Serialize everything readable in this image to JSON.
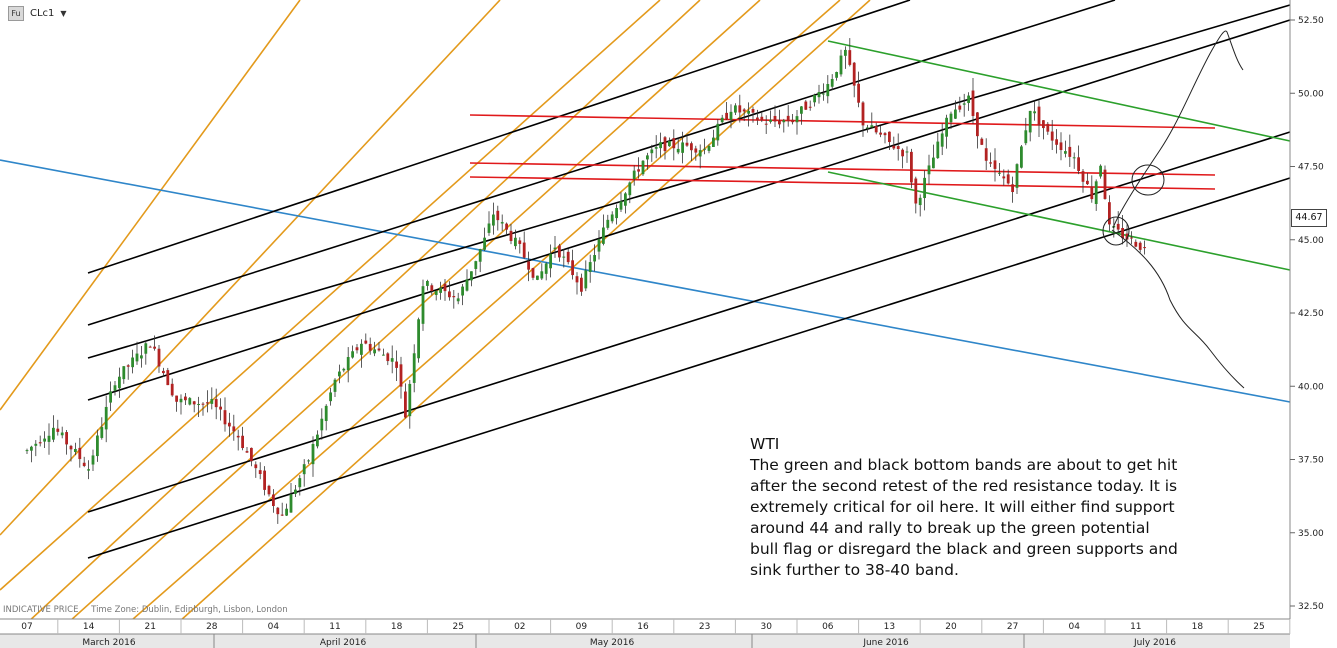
{
  "header": {
    "icon_label": "Fu",
    "symbol": "CLc1"
  },
  "footer": {
    "indicative": "INDICATIVE PRICE",
    "timezone": "Time Zone: Dublin, Edinburgh, Lisbon, London"
  },
  "annotation": {
    "title": "WTI",
    "body": "The green and black bottom bands are about to get hit after the second retest of the red resistance today. It is extremely critical for oil here. It will either find support around 44 and rally to break up the green potential bull flag or disregard the black and green supports and sink further to 38-40 band."
  },
  "last_price": "44.67",
  "colors": {
    "up_candle": "#2e8b2e",
    "down_candle": "#b22222",
    "channel_black": "#000000",
    "channel_orange": "#e39a1c",
    "channel_red": "#e0191b",
    "channel_green": "#2ca02c",
    "trend_blue": "#2f86c9",
    "axis_bg": "#e8e8e8"
  },
  "chart_data": {
    "type": "candlestick",
    "title": "",
    "ylim": [
      32.5,
      52.5
    ],
    "y_ticks": [
      "32.50",
      "35.00",
      "37.50",
      "40.00",
      "42.50",
      "45.00",
      "47.50",
      "50.00",
      "52.50"
    ],
    "x_day_ticks": [
      "07",
      "14",
      "21",
      "28",
      "04",
      "11",
      "18",
      "25",
      "02",
      "09",
      "16",
      "23",
      "30",
      "06",
      "13",
      "20",
      "27",
      "04",
      "11",
      "18",
      "25"
    ],
    "x_month_labels": [
      "March 2016",
      "April 2016",
      "May 2016",
      "June 2016",
      "July 2016"
    ],
    "close_path_approx": [
      [
        "2016-03-07",
        37.8
      ],
      [
        "2016-03-10",
        38.6
      ],
      [
        "2016-03-14",
        37.2
      ],
      [
        "2016-03-17",
        40.2
      ],
      [
        "2016-03-21",
        41.5
      ],
      [
        "2016-03-24",
        39.5
      ],
      [
        "2016-03-28",
        39.4
      ],
      [
        "2016-03-31",
        38.3
      ],
      [
        "2016-04-04",
        36.0
      ],
      [
        "2016-04-05",
        35.6
      ],
      [
        "2016-04-08",
        37.5
      ],
      [
        "2016-04-11",
        40.2
      ],
      [
        "2016-04-14",
        41.5
      ],
      [
        "2016-04-17",
        41.0
      ],
      [
        "2016-04-18",
        40.8
      ],
      [
        "2016-04-19",
        39.0
      ],
      [
        "2016-04-21",
        43.5
      ],
      [
        "2016-04-25",
        43.0
      ],
      [
        "2016-04-28",
        45.0
      ],
      [
        "2016-04-29",
        45.9
      ],
      [
        "2016-05-02",
        44.7
      ],
      [
        "2016-05-04",
        43.6
      ],
      [
        "2016-05-06",
        44.8
      ],
      [
        "2016-05-09",
        43.4
      ],
      [
        "2016-05-12",
        45.7
      ],
      [
        "2016-05-16",
        47.7
      ],
      [
        "2016-05-18",
        48.2
      ],
      [
        "2016-05-21",
        48.2
      ],
      [
        "2016-05-23",
        48.1
      ],
      [
        "2016-05-26",
        49.5
      ],
      [
        "2016-05-30",
        49.0
      ],
      [
        "2016-06-02",
        49.1
      ],
      [
        "2016-06-06",
        50.3
      ],
      [
        "2016-06-08",
        51.4
      ],
      [
        "2016-06-10",
        49.0
      ],
      [
        "2016-06-13",
        48.3
      ],
      [
        "2016-06-15",
        47.9
      ],
      [
        "2016-06-16",
        46.2
      ],
      [
        "2016-06-20",
        49.4
      ],
      [
        "2016-06-22",
        49.8
      ],
      [
        "2016-06-24",
        47.6
      ],
      [
        "2016-06-27",
        46.8
      ],
      [
        "2016-06-29",
        49.5
      ],
      [
        "2016-07-01",
        48.6
      ],
      [
        "2016-07-04",
        47.8
      ],
      [
        "2016-07-06",
        46.5
      ],
      [
        "2016-07-07",
        47.6
      ],
      [
        "2016-07-08",
        45.4
      ],
      [
        "2016-07-11",
        44.9
      ],
      [
        "2016-07-12",
        44.67
      ]
    ]
  }
}
